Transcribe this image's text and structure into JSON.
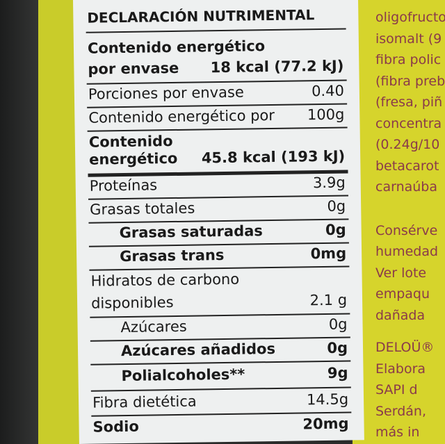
{
  "label": {
    "title": "DECLARACIÓN NUTRIMENTAL",
    "energy_pack_label_1": "Contenido energético",
    "energy_pack_label_2": "por envase",
    "energy_pack_value": "18 kcal (77.2 kJ)",
    "servings_label": "Porciones por envase",
    "servings_value": "0.40",
    "energy100_label": "Contenido energético por",
    "energy100_unit": "100g",
    "energy_label_1": "Contenido",
    "energy_label_2": "energético",
    "energy_value": "45.8 kcal (193 kJ)",
    "rows": [
      {
        "label": "Proteínas",
        "value": "3.9g"
      },
      {
        "label": "Grasas totales",
        "value": "0g"
      },
      {
        "label": "Grasas saturadas",
        "value": "0g"
      },
      {
        "label": "Grasas trans",
        "value": "0mg"
      },
      {
        "label": "Hidratos de carbono",
        "value": ""
      },
      {
        "label": "disponibles",
        "value": "2.1 g"
      },
      {
        "label": "Azúcares",
        "value": "0g"
      },
      {
        "label": "Azúcares añadidos",
        "value": "0g"
      },
      {
        "label": "Polialcoholes**",
        "value": "9g"
      },
      {
        "label": "Fibra dietética",
        "value": "14.5g"
      },
      {
        "label": "Sodio",
        "value": "20mg"
      }
    ]
  },
  "side_text": [
    "oligofructo",
    "isomalt (9",
    "fibra polic",
    "(fibra preb",
    "(fresa, piñ",
    "concentra",
    "(0.24g/10",
    "betacarot",
    "carnaúba",
    "Consérve",
    "humedad",
    "Ver lote",
    "empaqu",
    "dañada",
    "DELOÜ®",
    "Elabora",
    "SAPI d",
    "Serdán,",
    "más in"
  ]
}
